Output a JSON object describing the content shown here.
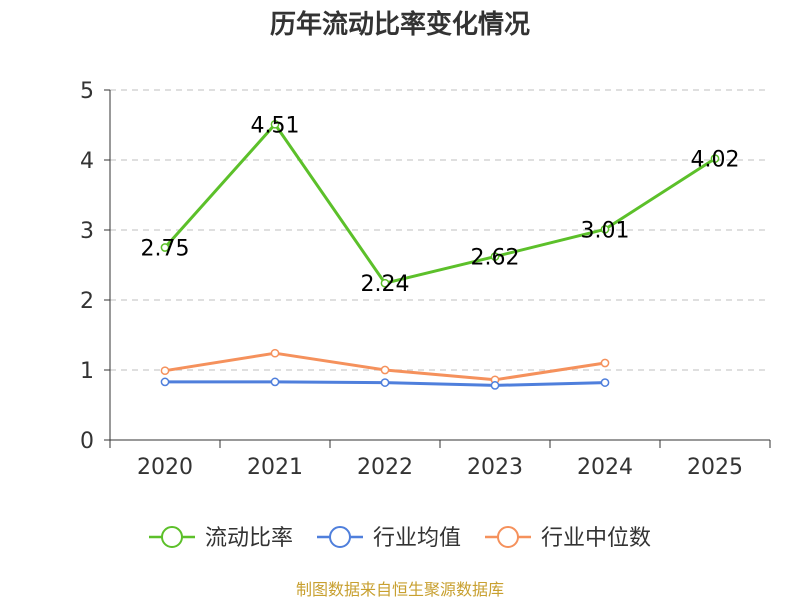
{
  "chart_data": {
    "type": "line",
    "title": "历年流动比率变化情况",
    "categories": [
      "2020",
      "2021",
      "2022",
      "2023",
      "2024",
      "2025"
    ],
    "ylim": [
      0,
      5
    ],
    "yticks": [
      "0",
      "1",
      "2",
      "3",
      "4",
      "5"
    ],
    "grid": true,
    "legend_position": "bottom",
    "series": [
      {
        "name": "流动比率",
        "color": "#5cc02a",
        "values": [
          2.75,
          4.51,
          2.24,
          2.62,
          3.01,
          4.02
        ],
        "labels": [
          "2.75",
          "4.51",
          "2.24",
          "2.62",
          "3.01",
          "4.02"
        ],
        "show_labels": true
      },
      {
        "name": "行业均值",
        "color": "#4f7fdc",
        "values": [
          0.83,
          0.83,
          0.82,
          0.78,
          0.82,
          null
        ],
        "show_labels": false
      },
      {
        "name": "行业中位数",
        "color": "#f5915c",
        "values": [
          0.99,
          1.24,
          1.0,
          0.86,
          1.1,
          null
        ],
        "show_labels": false
      }
    ],
    "source": "制图数据来自恒生聚源数据库",
    "source_color": "#c8a030"
  }
}
